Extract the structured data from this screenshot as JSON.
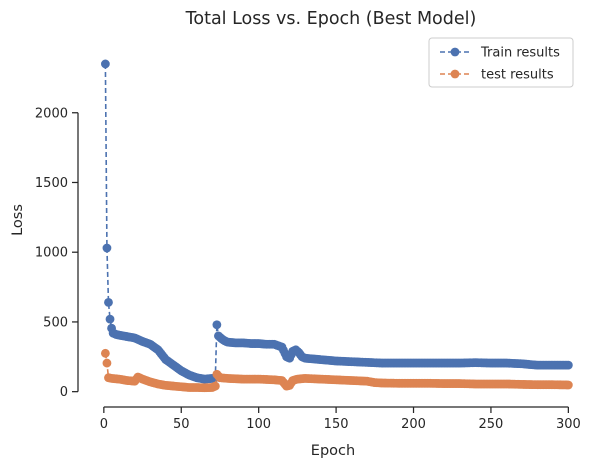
{
  "chart_data": {
    "type": "line",
    "title": "Total Loss vs. Epoch (Best Model)",
    "xlabel": "Epoch",
    "ylabel": "Loss",
    "xlim": [
      -7,
      303
    ],
    "ylim": [
      -110,
      2450
    ],
    "xticks": [
      0,
      50,
      100,
      150,
      200,
      250,
      300
    ],
    "yticks": [
      0,
      500,
      1000,
      1500,
      2000
    ],
    "grid": false,
    "legend_position": "top-right",
    "series": [
      {
        "name": "Train results",
        "color": "#4c72b0",
        "linestyle": "dashed",
        "marker": "circle",
        "points": [
          [
            1,
            2350
          ],
          [
            2,
            1030
          ],
          [
            3,
            640
          ],
          [
            4,
            520
          ],
          [
            5,
            455
          ],
          [
            6,
            420
          ],
          [
            8,
            410
          ],
          [
            10,
            405
          ],
          [
            15,
            395
          ],
          [
            20,
            385
          ],
          [
            25,
            360
          ],
          [
            30,
            340
          ],
          [
            35,
            300
          ],
          [
            40,
            230
          ],
          [
            45,
            190
          ],
          [
            50,
            150
          ],
          [
            55,
            120
          ],
          [
            60,
            100
          ],
          [
            65,
            90
          ],
          [
            70,
            95
          ],
          [
            72,
            100
          ],
          [
            73,
            480
          ],
          [
            74,
            400
          ],
          [
            76,
            380
          ],
          [
            78,
            365
          ],
          [
            80,
            355
          ],
          [
            85,
            350
          ],
          [
            90,
            350
          ],
          [
            95,
            345
          ],
          [
            100,
            345
          ],
          [
            105,
            340
          ],
          [
            110,
            340
          ],
          [
            115,
            320
          ],
          [
            118,
            250
          ],
          [
            120,
            240
          ],
          [
            122,
            290
          ],
          [
            124,
            300
          ],
          [
            126,
            280
          ],
          [
            128,
            250
          ],
          [
            130,
            240
          ],
          [
            135,
            235
          ],
          [
            140,
            230
          ],
          [
            150,
            220
          ],
          [
            160,
            215
          ],
          [
            170,
            210
          ],
          [
            180,
            205
          ],
          [
            190,
            205
          ],
          [
            200,
            205
          ],
          [
            210,
            205
          ],
          [
            220,
            205
          ],
          [
            230,
            205
          ],
          [
            240,
            208
          ],
          [
            250,
            205
          ],
          [
            260,
            205
          ],
          [
            270,
            200
          ],
          [
            280,
            190
          ],
          [
            290,
            190
          ],
          [
            300,
            190
          ]
        ]
      },
      {
        "name": "test results",
        "color": "#dd8452",
        "linestyle": "dashed",
        "marker": "circle",
        "points": [
          [
            1,
            275
          ],
          [
            2,
            205
          ],
          [
            3,
            100
          ],
          [
            5,
            95
          ],
          [
            10,
            90
          ],
          [
            15,
            80
          ],
          [
            20,
            75
          ],
          [
            22,
            105
          ],
          [
            25,
            90
          ],
          [
            30,
            70
          ],
          [
            35,
            55
          ],
          [
            40,
            45
          ],
          [
            45,
            40
          ],
          [
            50,
            35
          ],
          [
            55,
            30
          ],
          [
            60,
            30
          ],
          [
            65,
            28
          ],
          [
            70,
            30
          ],
          [
            72,
            40
          ],
          [
            73,
            125
          ],
          [
            75,
            100
          ],
          [
            80,
            95
          ],
          [
            90,
            90
          ],
          [
            100,
            90
          ],
          [
            110,
            85
          ],
          [
            115,
            80
          ],
          [
            118,
            40
          ],
          [
            120,
            45
          ],
          [
            122,
            80
          ],
          [
            125,
            90
          ],
          [
            130,
            95
          ],
          [
            140,
            90
          ],
          [
            150,
            85
          ],
          [
            160,
            80
          ],
          [
            170,
            75
          ],
          [
            175,
            65
          ],
          [
            180,
            62
          ],
          [
            190,
            60
          ],
          [
            200,
            60
          ],
          [
            210,
            60
          ],
          [
            220,
            58
          ],
          [
            230,
            58
          ],
          [
            240,
            55
          ],
          [
            250,
            55
          ],
          [
            260,
            55
          ],
          [
            270,
            52
          ],
          [
            280,
            50
          ],
          [
            290,
            50
          ],
          [
            300,
            48
          ]
        ]
      }
    ]
  }
}
